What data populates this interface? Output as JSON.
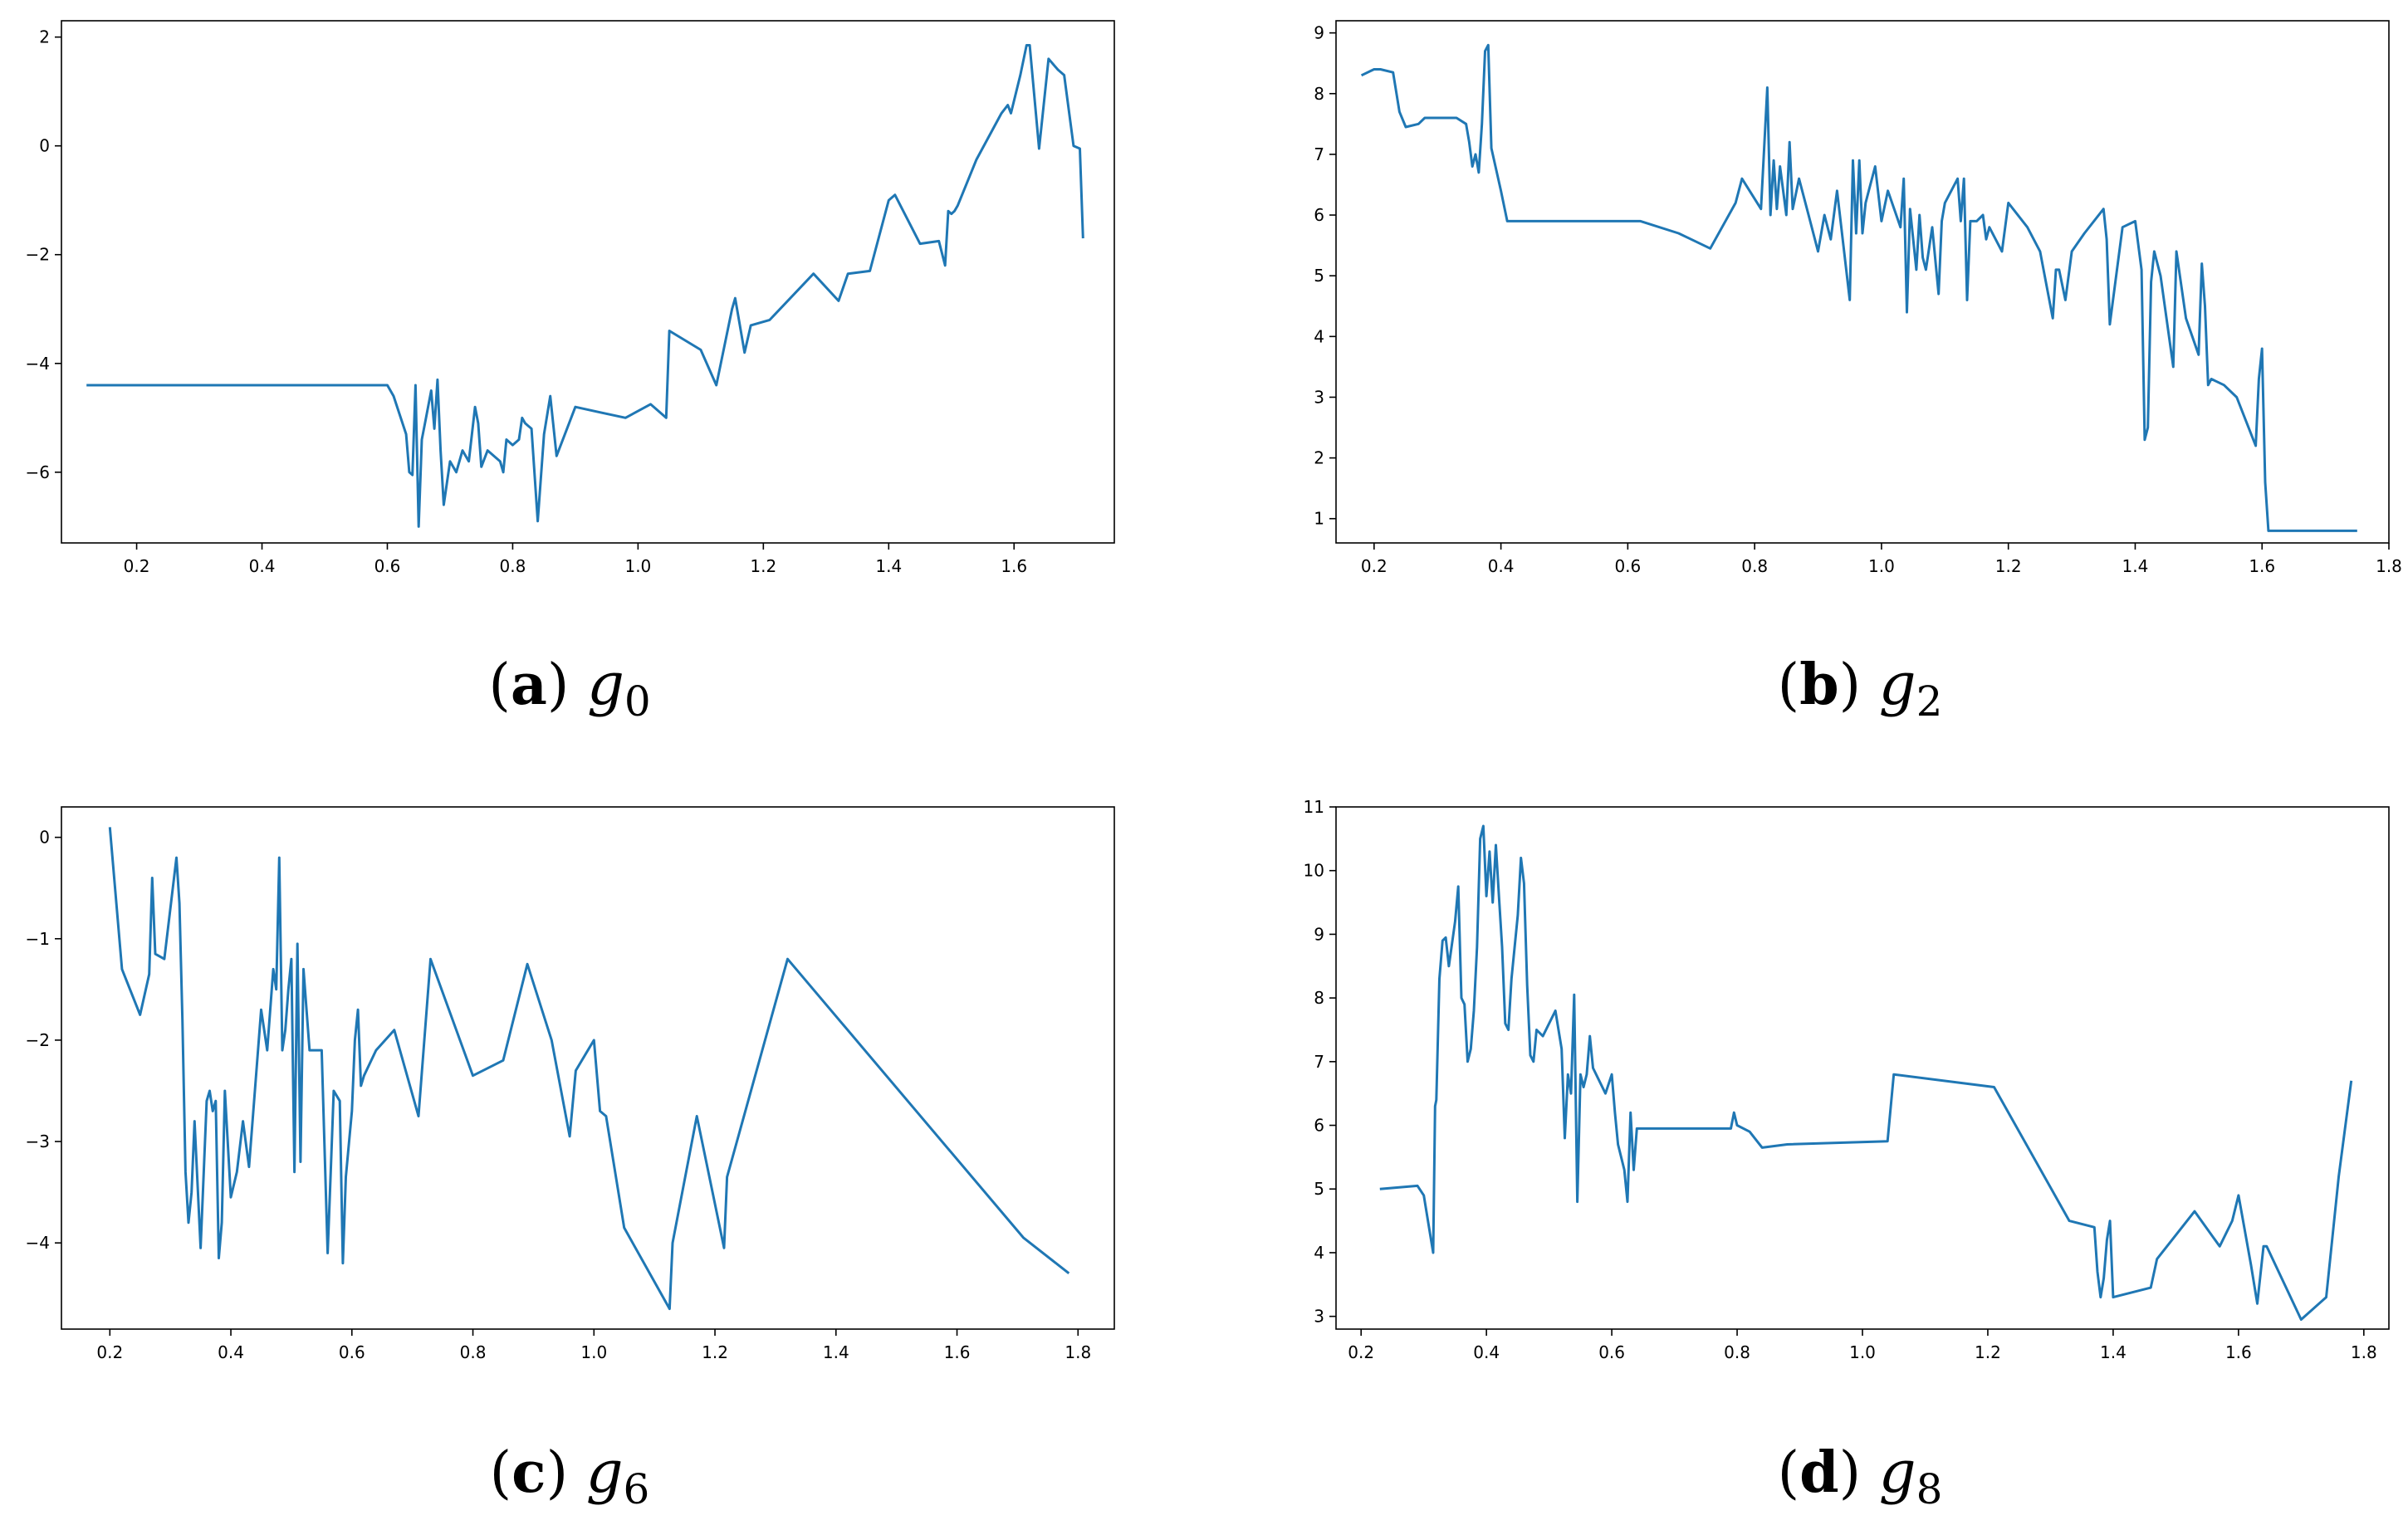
{
  "chart_data": [
    {
      "type": "line",
      "caption": {
        "letter": "a",
        "var": "g",
        "sub": "0"
      },
      "xlim": [
        0.08,
        1.76
      ],
      "ylim": [
        -7.3,
        2.3
      ],
      "xticks": [
        0.2,
        0.4,
        0.6,
        0.8,
        1.0,
        1.2,
        1.4,
        1.6
      ],
      "xtick_labels": [
        "0.2",
        "0.4",
        "0.6",
        "0.8",
        "1.0",
        "1.2",
        "1.4",
        "1.6"
      ],
      "yticks": [
        -6,
        -4,
        -2,
        0,
        2
      ],
      "ytick_labels": [
        "−6",
        "−4",
        "−2",
        "0",
        "2"
      ],
      "color": "#1f77b4",
      "x": [
        0.12,
        0.6,
        0.61,
        0.63,
        0.635,
        0.64,
        0.645,
        0.65,
        0.655,
        0.66,
        0.67,
        0.675,
        0.68,
        0.685,
        0.69,
        0.7,
        0.71,
        0.72,
        0.73,
        0.74,
        0.745,
        0.75,
        0.76,
        0.78,
        0.785,
        0.79,
        0.8,
        0.81,
        0.815,
        0.82,
        0.83,
        0.84,
        0.85,
        0.86,
        0.87,
        0.9,
        0.94,
        0.98,
        1.02,
        1.045,
        1.05,
        1.1,
        1.125,
        1.15,
        1.155,
        1.17,
        1.18,
        1.21,
        1.28,
        1.32,
        1.335,
        1.37,
        1.4,
        1.41,
        1.45,
        1.48,
        1.49,
        1.495,
        1.5,
        1.505,
        1.51,
        1.54,
        1.58,
        1.59,
        1.595,
        1.61,
        1.62,
        1.625,
        1.64,
        1.655,
        1.67,
        1.68,
        1.695,
        1.705,
        1.71
      ],
      "y": [
        -4.4,
        -4.4,
        -4.6,
        -5.3,
        -6.0,
        -6.05,
        -4.4,
        -7.0,
        -5.4,
        -5.1,
        -4.5,
        -5.2,
        -4.3,
        -5.6,
        -6.6,
        -5.8,
        -6.0,
        -5.6,
        -5.8,
        -4.8,
        -5.1,
        -5.9,
        -5.6,
        -5.8,
        -6.0,
        -5.4,
        -5.5,
        -5.4,
        -5.0,
        -5.1,
        -5.2,
        -6.9,
        -5.3,
        -4.6,
        -5.7,
        -4.8,
        -4.9,
        -5.0,
        -4.75,
        -5.0,
        -3.4,
        -3.75,
        -4.4,
        -3.0,
        -2.8,
        -3.8,
        -3.3,
        -3.2,
        -2.35,
        -2.85,
        -2.35,
        -2.3,
        -1.0,
        -0.9,
        -1.8,
        -1.75,
        -2.2,
        -1.2,
        -1.25,
        -1.2,
        -1.1,
        -0.25,
        0.6,
        0.75,
        0.6,
        1.3,
        1.85,
        1.85,
        -0.05,
        1.6,
        1.4,
        1.3,
        0.0,
        -0.05,
        -1.7
      ]
    },
    {
      "type": "line",
      "caption": {
        "letter": "b",
        "var": "g",
        "sub": "2"
      },
      "xlim": [
        0.14,
        1.8
      ],
      "ylim": [
        0.6,
        9.2
      ],
      "xticks": [
        0.2,
        0.4,
        0.6,
        0.8,
        1.0,
        1.2,
        1.4,
        1.6,
        1.8
      ],
      "xtick_labels": [
        "0.2",
        "0.4",
        "0.6",
        "0.8",
        "1.0",
        "1.2",
        "1.4",
        "1.6",
        "1.8"
      ],
      "yticks": [
        1,
        2,
        3,
        4,
        5,
        6,
        7,
        8,
        9
      ],
      "ytick_labels": [
        "1",
        "2",
        "3",
        "4",
        "5",
        "6",
        "7",
        "8",
        "9"
      ],
      "color": "#1f77b4",
      "x": [
        0.18,
        0.2,
        0.21,
        0.23,
        0.24,
        0.25,
        0.27,
        0.28,
        0.33,
        0.345,
        0.35,
        0.355,
        0.36,
        0.365,
        0.37,
        0.375,
        0.38,
        0.385,
        0.4,
        0.41,
        0.6,
        0.62,
        0.68,
        0.7,
        0.73,
        0.77,
        0.78,
        0.81,
        0.82,
        0.825,
        0.83,
        0.835,
        0.84,
        0.85,
        0.855,
        0.86,
        0.87,
        0.885,
        0.9,
        0.91,
        0.92,
        0.93,
        0.95,
        0.955,
        0.96,
        0.965,
        0.97,
        0.975,
        0.98,
        0.99,
        1.0,
        1.01,
        1.02,
        1.03,
        1.035,
        1.04,
        1.045,
        1.05,
        1.055,
        1.06,
        1.065,
        1.07,
        1.08,
        1.09,
        1.095,
        1.1,
        1.12,
        1.125,
        1.13,
        1.135,
        1.14,
        1.15,
        1.16,
        1.165,
        1.17,
        1.18,
        1.19,
        1.2,
        1.23,
        1.25,
        1.27,
        1.275,
        1.28,
        1.29,
        1.3,
        1.32,
        1.35,
        1.355,
        1.36,
        1.38,
        1.4,
        1.41,
        1.415,
        1.42,
        1.425,
        1.43,
        1.44,
        1.46,
        1.465,
        1.48,
        1.5,
        1.505,
        1.51,
        1.515,
        1.52,
        1.54,
        1.56,
        1.59,
        1.595,
        1.6,
        1.605,
        1.61,
        1.62,
        1.75
      ],
      "y": [
        8.3,
        8.4,
        8.4,
        8.35,
        7.7,
        7.45,
        7.5,
        7.6,
        7.6,
        7.5,
        7.2,
        6.8,
        7.0,
        6.7,
        7.5,
        8.7,
        8.8,
        7.1,
        6.4,
        5.9,
        5.9,
        5.9,
        5.7,
        5.6,
        5.45,
        6.2,
        6.6,
        6.1,
        8.1,
        6.0,
        6.9,
        6.1,
        6.8,
        6.0,
        7.2,
        6.1,
        6.6,
        6.0,
        5.4,
        6.0,
        5.6,
        6.4,
        4.6,
        6.9,
        5.7,
        6.9,
        5.7,
        6.2,
        6.4,
        6.8,
        5.9,
        6.4,
        6.1,
        5.8,
        6.6,
        4.4,
        6.1,
        5.6,
        5.1,
        6.0,
        5.3,
        5.1,
        5.8,
        4.7,
        5.9,
        6.2,
        6.6,
        5.9,
        6.6,
        4.6,
        5.9,
        5.9,
        6.0,
        5.6,
        5.8,
        5.6,
        5.4,
        6.2,
        5.8,
        5.4,
        4.3,
        5.1,
        5.1,
        4.6,
        5.4,
        5.7,
        6.1,
        5.6,
        4.2,
        5.8,
        5.9,
        5.1,
        2.3,
        2.5,
        4.9,
        5.4,
        5.0,
        3.5,
        5.4,
        4.3,
        3.7,
        5.2,
        4.5,
        3.2,
        3.3,
        3.2,
        3.0,
        2.2,
        3.3,
        3.8,
        1.6,
        0.8,
        0.8,
        0.8
      ]
    },
    {
      "type": "line",
      "caption": {
        "letter": "c",
        "var": "g",
        "sub": "6"
      },
      "xlim": [
        0.12,
        1.86
      ],
      "ylim": [
        -4.85,
        0.3
      ],
      "xticks": [
        0.2,
        0.4,
        0.6,
        0.8,
        1.0,
        1.2,
        1.4,
        1.6,
        1.8
      ],
      "xtick_labels": [
        "0.2",
        "0.4",
        "0.6",
        "0.8",
        "1.0",
        "1.2",
        "1.4",
        "1.6",
        "1.8"
      ],
      "yticks": [
        -4,
        -3,
        -2,
        -1,
        0
      ],
      "ytick_labels": [
        "−4",
        "−3",
        "−2",
        "−1",
        "0"
      ],
      "color": "#1f77b4",
      "x": [
        0.2,
        0.22,
        0.25,
        0.265,
        0.27,
        0.275,
        0.29,
        0.31,
        0.315,
        0.32,
        0.325,
        0.33,
        0.335,
        0.34,
        0.35,
        0.36,
        0.365,
        0.37,
        0.375,
        0.38,
        0.385,
        0.39,
        0.4,
        0.41,
        0.42,
        0.43,
        0.45,
        0.46,
        0.47,
        0.475,
        0.48,
        0.485,
        0.49,
        0.495,
        0.5,
        0.505,
        0.51,
        0.515,
        0.52,
        0.53,
        0.55,
        0.56,
        0.565,
        0.57,
        0.58,
        0.585,
        0.59,
        0.6,
        0.605,
        0.61,
        0.615,
        0.62,
        0.64,
        0.67,
        0.71,
        0.73,
        0.8,
        0.85,
        0.89,
        0.93,
        0.96,
        0.97,
        1.0,
        1.01,
        1.02,
        1.05,
        1.125,
        1.13,
        1.17,
        1.215,
        1.22,
        1.32,
        1.71,
        1.785
      ],
      "y": [
        0.1,
        -1.3,
        -1.75,
        -1.35,
        -0.4,
        -1.15,
        -1.2,
        -0.2,
        -0.65,
        -1.8,
        -3.3,
        -3.8,
        -3.5,
        -2.8,
        -4.05,
        -2.6,
        -2.5,
        -2.7,
        -2.6,
        -4.15,
        -3.8,
        -2.5,
        -3.55,
        -3.3,
        -2.8,
        -3.25,
        -1.7,
        -2.1,
        -1.3,
        -1.5,
        -0.2,
        -2.1,
        -1.9,
        -1.5,
        -1.2,
        -3.3,
        -1.05,
        -3.2,
        -1.3,
        -2.1,
        -2.1,
        -4.1,
        -3.3,
        -2.5,
        -2.6,
        -4.2,
        -3.35,
        -2.7,
        -2.0,
        -1.7,
        -2.45,
        -2.35,
        -2.1,
        -1.9,
        -2.75,
        -1.2,
        -2.35,
        -2.2,
        -1.25,
        -2.0,
        -2.95,
        -2.3,
        -2.0,
        -2.7,
        -2.75,
        -3.85,
        -4.65,
        -4.0,
        -2.75,
        -4.05,
        -3.35,
        -1.2,
        -3.95,
        -4.3
      ]
    },
    {
      "type": "line",
      "caption": {
        "letter": "d",
        "var": "g",
        "sub": "8"
      },
      "xlim": [
        0.16,
        1.84
      ],
      "ylim": [
        2.8,
        11.0
      ],
      "xticks": [
        0.2,
        0.4,
        0.6,
        0.8,
        1.0,
        1.2,
        1.4,
        1.6,
        1.8
      ],
      "xtick_labels": [
        "0.2",
        "0.4",
        "0.6",
        "0.8",
        "1.0",
        "1.2",
        "1.4",
        "1.6",
        "1.8"
      ],
      "yticks": [
        3,
        4,
        5,
        6,
        7,
        8,
        9,
        10,
        11
      ],
      "ytick_labels": [
        "3",
        "4",
        "5",
        "6",
        "7",
        "8",
        "9",
        "10",
        "11"
      ],
      "color": "#1f77b4",
      "x": [
        0.23,
        0.29,
        0.3,
        0.31,
        0.315,
        0.318,
        0.32,
        0.325,
        0.33,
        0.335,
        0.34,
        0.35,
        0.355,
        0.36,
        0.365,
        0.37,
        0.375,
        0.38,
        0.385,
        0.39,
        0.395,
        0.4,
        0.405,
        0.41,
        0.415,
        0.42,
        0.425,
        0.43,
        0.435,
        0.44,
        0.445,
        0.45,
        0.455,
        0.46,
        0.465,
        0.47,
        0.475,
        0.48,
        0.49,
        0.51,
        0.52,
        0.525,
        0.53,
        0.535,
        0.54,
        0.545,
        0.55,
        0.555,
        0.56,
        0.565,
        0.57,
        0.59,
        0.6,
        0.605,
        0.61,
        0.62,
        0.625,
        0.63,
        0.635,
        0.64,
        0.65,
        0.79,
        0.795,
        0.8,
        0.82,
        0.84,
        0.88,
        1.04,
        1.05,
        1.21,
        1.33,
        1.37,
        1.375,
        1.38,
        1.385,
        1.39,
        1.395,
        1.4,
        1.46,
        1.47,
        1.53,
        1.57,
        1.59,
        1.6,
        1.62,
        1.63,
        1.64,
        1.645,
        1.7,
        1.74,
        1.76,
        1.78
      ],
      "y": [
        5.0,
        5.05,
        4.9,
        4.3,
        4.0,
        6.3,
        6.4,
        8.3,
        8.9,
        8.95,
        8.5,
        9.2,
        9.75,
        8.0,
        7.9,
        7.0,
        7.2,
        7.8,
        8.8,
        10.5,
        10.7,
        9.6,
        10.3,
        9.5,
        10.4,
        9.6,
        8.8,
        7.6,
        7.5,
        8.3,
        8.8,
        9.3,
        10.2,
        9.8,
        8.2,
        7.1,
        7.0,
        7.5,
        7.4,
        7.8,
        7.2,
        5.8,
        6.8,
        6.5,
        8.05,
        4.8,
        6.8,
        6.6,
        6.8,
        7.4,
        6.9,
        6.5,
        6.8,
        6.2,
        5.7,
        5.3,
        4.8,
        6.2,
        5.3,
        5.95,
        5.95,
        5.95,
        6.2,
        6.0,
        5.9,
        5.65,
        5.7,
        5.75,
        6.8,
        6.6,
        4.5,
        4.4,
        3.7,
        3.3,
        3.6,
        4.2,
        4.5,
        3.3,
        3.45,
        3.9,
        4.65,
        4.1,
        4.5,
        4.9,
        3.8,
        3.2,
        4.1,
        4.1,
        2.95,
        3.3,
        5.2,
        6.7
      ]
    }
  ]
}
